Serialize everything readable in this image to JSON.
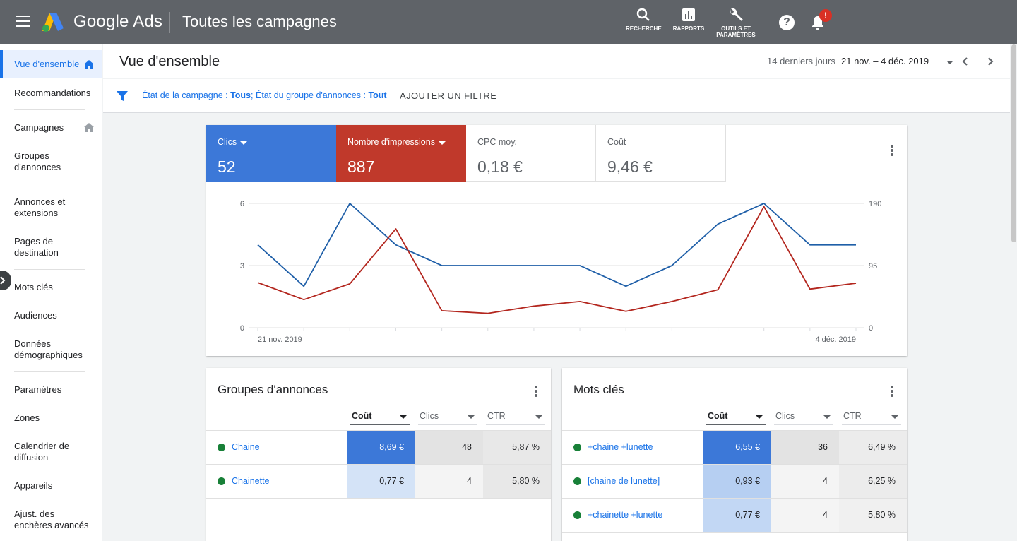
{
  "topbar": {
    "brand": "Google Ads",
    "page_title": "Toutes les campagnes",
    "tools": [
      {
        "label": "RECHERCHE",
        "icon": "search-icon"
      },
      {
        "label": "RAPPORTS",
        "icon": "reports-icon"
      },
      {
        "label_line1": "OUTILS ET",
        "label_line2": "PARAMÈTRES",
        "icon": "wrench-icon"
      }
    ],
    "notification_badge": "!"
  },
  "sidebar": {
    "items": [
      {
        "label": "Vue d'ensemble",
        "active": true
      },
      {
        "label": "Recommandations"
      },
      {
        "label": "Campagnes"
      },
      {
        "label_line1": "Groupes",
        "label_line2": "d'annonces"
      },
      {
        "label_line1": "Annonces et",
        "label_line2": "extensions"
      },
      {
        "label_line1": "Pages de",
        "label_line2": "destination"
      },
      {
        "label": "Mots clés"
      },
      {
        "label": "Audiences"
      },
      {
        "label_line1": "Données",
        "label_line2": "démographiques"
      },
      {
        "label": "Paramètres"
      },
      {
        "label": "Zones"
      },
      {
        "label_line1": "Calendrier de",
        "label_line2": "diffusion"
      },
      {
        "label": "Appareils"
      },
      {
        "label_line1": "Ajust. des",
        "label_line2": "enchères avancés"
      }
    ]
  },
  "header": {
    "title": "Vue d'ensemble",
    "date_preset": "14 derniers jours",
    "date_range": "21 nov. – 4 déc. 2019"
  },
  "filter": {
    "label1": "État de la campagne : ",
    "value1": "Tous",
    "sep": "; ",
    "label2": "État du groupe d'annonces : ",
    "value2": "Tout",
    "add_label": "AJOUTER UN FILTRE"
  },
  "metrics": [
    {
      "label": "Clics",
      "value": "52",
      "color": "#3c78d8"
    },
    {
      "label": "Nombre d'impressions",
      "value": "887",
      "color": "#c0392b"
    },
    {
      "label": "CPC moy.",
      "value": "0,18 €"
    },
    {
      "label": "Coût",
      "value": "9,46 €"
    }
  ],
  "chart_data": {
    "type": "line",
    "x": [
      "21 nov.",
      "22 nov.",
      "23 nov.",
      "24 nov.",
      "25 nov.",
      "26 nov.",
      "27 nov.",
      "28 nov.",
      "29 nov.",
      "30 nov.",
      "1 déc.",
      "2 déc.",
      "3 déc.",
      "4 déc."
    ],
    "x_tick_labels": [
      "21 nov. 2019",
      "4 déc. 2019"
    ],
    "series": [
      {
        "name": "Clics",
        "axis": "left",
        "color": "#1f5fa8",
        "values": [
          4,
          2,
          6,
          4,
          3,
          3,
          3,
          3,
          2,
          3,
          5,
          6,
          4,
          4
        ]
      },
      {
        "name": "Nombre d'impressions",
        "axis": "right",
        "color": "#b3261e",
        "values": [
          69,
          43,
          67,
          151,
          26,
          22,
          33,
          40,
          25,
          40,
          58,
          185,
          59,
          68
        ]
      }
    ],
    "ylim_left": [
      0,
      6
    ],
    "yticks_left": [
      "0",
      "3",
      "6"
    ],
    "ylim_right": [
      0,
      190
    ],
    "yticks_right": [
      "0",
      "95",
      "190"
    ],
    "grid": true
  },
  "ad_groups": {
    "title": "Groupes d'annonces",
    "columns": [
      "Coût",
      "Clics",
      "CTR"
    ],
    "rows": [
      {
        "name": "Chaine",
        "cost": "8,69 €",
        "clicks": "48",
        "ctr": "5,87 %"
      },
      {
        "name": "Chainette",
        "cost": "0,77 €",
        "clicks": "4",
        "ctr": "5,80 %"
      }
    ]
  },
  "keywords": {
    "title": "Mots clés",
    "columns": [
      "Coût",
      "Clics",
      "CTR"
    ],
    "rows": [
      {
        "name": "+chaine +lunette",
        "cost": "6,55 €",
        "clicks": "36",
        "ctr": "6,49 %"
      },
      {
        "name": "[chaine de lunette]",
        "cost": "0,93 €",
        "clicks": "4",
        "ctr": "6,25 %"
      },
      {
        "name": "+chainette +lunette",
        "cost": "0,77 €",
        "clicks": "4",
        "ctr": "5,80 %"
      }
    ]
  }
}
